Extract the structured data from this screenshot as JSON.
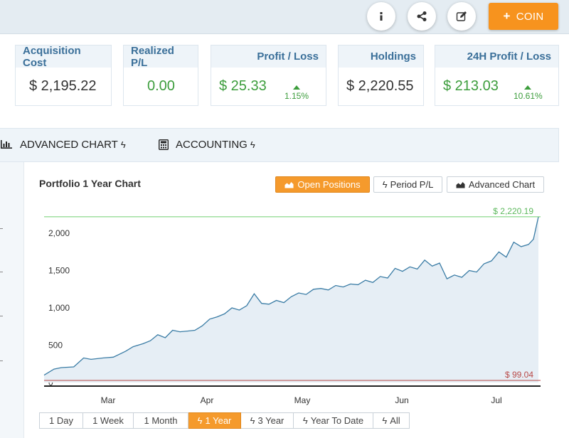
{
  "toolbar": {
    "icons": [
      "info-icon",
      "share-icon",
      "edit-icon"
    ],
    "coin_label": "COIN",
    "coin_icon": "plus-icon",
    "accent": "#f7931e"
  },
  "stats": [
    {
      "label": "Acquisition Cost",
      "value": "$ 2,195.22"
    },
    {
      "label": "Realized P/L",
      "value": "0.00"
    },
    {
      "label": "Profit / Loss",
      "value": "$ 25.33",
      "change": "1.15%"
    },
    {
      "label": "Holdings",
      "value": "$ 2,220.55"
    },
    {
      "label": "24H Profit / Loss",
      "value": "$ 213.03",
      "change": "10.61%"
    }
  ],
  "tabs": {
    "advanced": "ADVANCED CHART",
    "accounting": "ACCOUNTING",
    "bolt": "ϟ"
  },
  "chart_panel": {
    "title": "Portfolio 1 Year Chart",
    "buttons": [
      "Open Positions",
      "Period P/L",
      "Advanced Chart"
    ],
    "active_button": "Open Positions",
    "periods": [
      "1 Day",
      "1 Week",
      "1 Month",
      "1 Year",
      "3 Year",
      "Year To Date",
      "All"
    ],
    "active_period": "1 Year"
  },
  "chart_data": {
    "type": "area",
    "title": "Portfolio 1 Year Chart",
    "x_labels": [
      "Mar",
      "Apr",
      "May",
      "Jun",
      "Jul"
    ],
    "y_ticks": [
      0,
      500,
      1000,
      1500,
      2000
    ],
    "ylim": [
      0,
      2230
    ],
    "max_label": "$ 2,220.19",
    "max_value": 2220.19,
    "min_label": "$ 99.04",
    "min_value": 99.04,
    "line_color": "#3a7ca5",
    "fill_color": "#e6eef5",
    "max_line_color": "#6fcf6f",
    "min_line_color": "#b94a48",
    "series": [
      {
        "x": [
          0,
          0.02,
          0.035,
          0.06,
          0.08,
          0.095,
          0.12,
          0.14,
          0.165,
          0.18,
          0.2,
          0.215,
          0.23,
          0.245,
          0.26,
          0.275,
          0.29,
          0.305,
          0.32,
          0.335,
          0.35,
          0.365,
          0.38,
          0.395,
          0.41,
          0.425,
          0.44,
          0.455,
          0.47,
          0.485,
          0.5,
          0.515,
          0.53,
          0.545,
          0.56,
          0.575,
          0.59,
          0.605,
          0.62,
          0.635,
          0.65,
          0.665,
          0.68,
          0.695,
          0.71,
          0.725,
          0.74,
          0.755,
          0.77,
          0.785,
          0.8,
          0.815,
          0.83,
          0.845,
          0.86,
          0.875,
          0.89,
          0.905,
          0.92,
          0.935,
          0.95,
          0.965,
          0.98,
          0.99,
          1.0
        ],
        "y": [
          99,
          180,
          200,
          210,
          330,
          310,
          330,
          340,
          420,
          480,
          520,
          560,
          640,
          600,
          700,
          680,
          690,
          700,
          760,
          850,
          880,
          920,
          1000,
          970,
          1030,
          1190,
          1060,
          1050,
          1100,
          1070,
          1150,
          1200,
          1180,
          1250,
          1260,
          1240,
          1300,
          1280,
          1320,
          1310,
          1370,
          1340,
          1420,
          1400,
          1530,
          1490,
          1550,
          1520,
          1640,
          1560,
          1600,
          1390,
          1440,
          1410,
          1500,
          1480,
          1590,
          1630,
          1750,
          1680,
          1880,
          1820,
          1850,
          1920,
          2220
        ]
      }
    ]
  }
}
